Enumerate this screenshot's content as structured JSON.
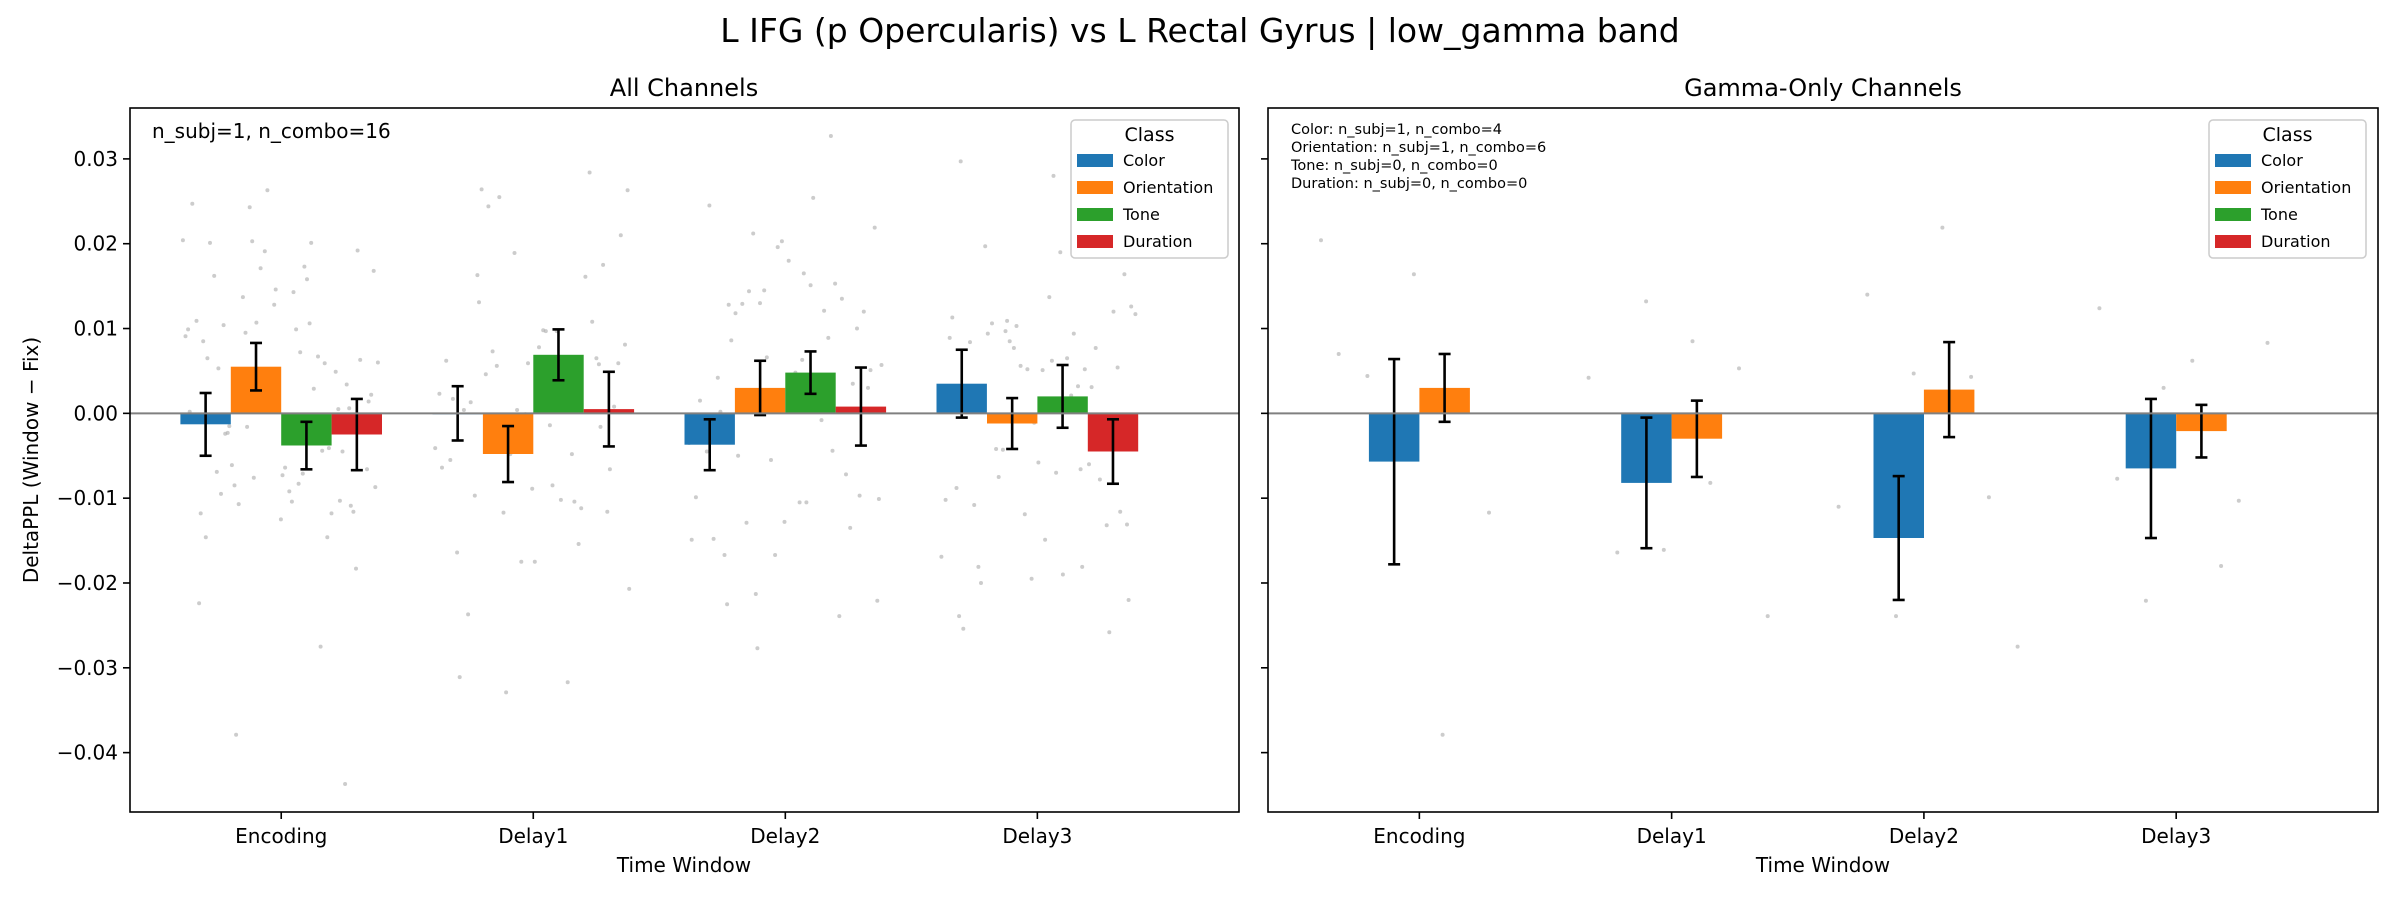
{
  "suptitle": "L IFG (p Opercularis) vs L Rectal Gyrus  |  low_gamma band",
  "legend_title": "Class",
  "classes": [
    "Color",
    "Orientation",
    "Tone",
    "Duration"
  ],
  "colors": {
    "Color": "#1f77b4",
    "Orientation": "#ff7f0e",
    "Tone": "#2ca02c",
    "Duration": "#d62728"
  },
  "chart_data": [
    {
      "type": "bar",
      "title": "All Channels",
      "xlabel": "Time Window",
      "ylabel": "DeltaPPL (Window − Fix)",
      "categories": [
        "Encoding",
        "Delay1",
        "Delay2",
        "Delay3"
      ],
      "ylim": [
        -0.047,
        0.036
      ],
      "yticks": [
        0.03,
        0.02,
        0.01,
        0.0,
        -0.01,
        -0.02,
        -0.03,
        -0.04
      ],
      "ytick_labels": [
        "0.03",
        "0.02",
        "0.01",
        "0.00",
        "−0.01",
        "−0.02",
        "−0.03",
        "−0.04"
      ],
      "annotation": [
        "n_subj=1, n_combo=16"
      ],
      "legend_position": "top-right",
      "series": [
        {
          "name": "Color",
          "values": [
            -0.0013,
            0.0,
            -0.0037,
            0.0035
          ],
          "err": [
            0.0037,
            0.0032,
            0.003,
            0.004
          ]
        },
        {
          "name": "Orientation",
          "values": [
            0.0055,
            -0.0048,
            0.003,
            -0.0012
          ],
          "err": [
            0.0028,
            0.0033,
            0.0032,
            0.003
          ]
        },
        {
          "name": "Tone",
          "values": [
            -0.0038,
            0.0069,
            0.0048,
            0.002
          ],
          "err": [
            0.0028,
            0.003,
            0.0025,
            0.0037
          ]
        },
        {
          "name": "Duration",
          "values": [
            -0.0025,
            0.0005,
            0.0008,
            -0.0045
          ],
          "err": [
            0.0042,
            0.0044,
            0.0046,
            0.0038
          ]
        }
      ],
      "scatter": [
        [
          0.0204,
          0.0173,
          -0.0015,
          -0.0109,
          0.0146,
          -0.0118,
          -0.0044,
          -0.0016,
          0.0014,
          0.0143,
          0.0053,
          -0.0103,
          0.0191,
          0.0002,
          0.0201,
          -0.0379,
          0.0192,
          -0.0073,
          0.0065,
          -0.0041,
          -0.0076,
          -0.0087,
          0.0072,
          -0.0024,
          0.0034,
          0.0028,
          0.0109,
          0.0067,
          0.0137,
          -0.0015,
          -0.0092,
          0.0162,
          0.0049,
          0.0171,
          0.0091,
          0.0158,
          -0.0061,
          -0.0116,
          0.0037,
          0.0085,
          0.0059,
          0.0243,
          0.0022,
          0.0099,
          -0.0095,
          -0.0045,
          0.0263,
          0.0247,
          0.0029,
          -0.0107,
          0.0063,
          -0.0064,
          0.0201,
          -0.0118,
          0.0107,
          0.006,
          -0.0071,
          -0.0023,
          0.0006,
          0.0128,
          -0.0224,
          -0.0275,
          0.0095,
          -0.0066,
          -0.0104,
          -0.0069,
          0.0005,
          0.0031,
          0.0099,
          0.0106,
          -0.0085,
          -0.0183,
          -0.0125,
          -0.0146,
          -0.0146,
          0.0203,
          0.0168,
          -0.0083,
          0.0104,
          -0.0437
        ],
        [
          -0.0032,
          -0.0207,
          0.0003,
          0.0131,
          -0.0016,
          -0.0001,
          -0.0055,
          -0.0048,
          0.0056,
          0.0059,
          0.0098,
          -0.0237,
          0.0284,
          0.0189,
          0.0023,
          -0.0102,
          0.0046,
          -0.0116,
          -0.0089,
          -0.0164,
          -0.0154,
          -0.0117,
          0.0081,
          -0.0014,
          -0.0097,
          0.0065,
          -0.0175,
          0.0062,
          -0.0317,
          0.0073,
          0.0008,
          0.0078,
          0.0004,
          0.0161,
          -0.0048,
          -0.0041,
          0.0097,
          0.0264,
          0.0175,
          0.0059,
          0.0017,
          -0.0104,
          0.0255,
          0.021,
          0.0097,
          0.0013,
          0.0108,
          0.0004,
          -0.0064,
          0.0014,
          0.0244,
          -0.0066,
          -0.0175,
          -0.0311,
          -0.0112,
          -0.0329,
          0.0263,
          -0.0085,
          0.0163,
          0.0058
        ],
        [
          -0.0044,
          -0.0277,
          -0.0101,
          0.0165,
          0.0128,
          -0.0135,
          -0.0167,
          0.0015,
          -0.0008,
          -0.0129,
          0.003,
          0.004,
          0.0042,
          -0.0239,
          0.0145,
          -0.0035,
          0.0151,
          0.0118,
          0.01,
          0.0203,
          -0.0045,
          0.0089,
          0.0212,
          0.0219,
          -0.0105,
          -0.0167,
          -0.0072,
          -0.0055,
          -0.0099,
          0.0012,
          0.0129,
          0.012,
          0.018,
          -0.0148,
          0.0153,
          0.013,
          0.0057,
          -0.0105,
          0.0086,
          0.0035,
          0.0196,
          -0.0031,
          0.0121,
          0.0144,
          0.0051,
          0.0048,
          0.0002,
          0.0135,
          0.0066,
          -0.0149,
          0.0254,
          -0.005,
          -0.0097,
          -0.0128,
          0.0245,
          0.0327,
          -0.0213,
          -0.0221,
          0.0063,
          -0.0225
        ],
        [
          0.0297,
          -0.0181,
          0.0109,
          -0.022,
          0.028,
          -0.0181,
          -0.0078,
          -0.0119,
          0.0089,
          0.0021,
          -0.0042,
          0.0054,
          0.0051,
          0.0006,
          -0.006,
          0.0077,
          0.0117,
          0.019,
          0.0197,
          -0.0132,
          -0.0195,
          -0.0088,
          0.0032,
          -0.0043,
          0.0164,
          0.0137,
          -0.0108,
          0.0077,
          0.0056,
          -0.0102,
          0.0065,
          0.0106,
          0.012,
          -0.0058,
          -0.0254,
          0.0052,
          0.0085,
          0.0126,
          -0.007,
          -0.02,
          -0.0026,
          0.0052,
          0.0113,
          0.0094,
          -0.0075,
          -0.0116,
          -0.0149,
          0.0084,
          0.0031,
          0.0103,
          -0.0169,
          -0.019,
          0.0094,
          -0.0258,
          -0.0011,
          -0.0239,
          -0.0066,
          0.0097,
          -0.0131,
          0.0062
        ]
      ]
    },
    {
      "type": "bar",
      "title": "Gamma-Only Channels",
      "xlabel": "Time Window",
      "ylabel": "",
      "categories": [
        "Encoding",
        "Delay1",
        "Delay2",
        "Delay3"
      ],
      "ylim": [
        -0.047,
        0.036
      ],
      "annotation": [
        "Color: n_subj=1, n_combo=4",
        "Orientation: n_subj=1, n_combo=6",
        "Tone: n_subj=0, n_combo=0",
        "Duration: n_subj=0, n_combo=0"
      ],
      "legend_position": "top-right",
      "series": [
        {
          "name": "Color",
          "values": [
            -0.0057,
            -0.0082,
            -0.0147,
            -0.0065
          ],
          "err": [
            0.0121,
            0.0077,
            0.0073,
            0.0082
          ]
        },
        {
          "name": "Orientation",
          "values": [
            0.003,
            -0.003,
            0.0028,
            -0.0021
          ],
          "err": [
            0.004,
            0.0045,
            0.0056,
            0.0031
          ]
        }
      ],
      "scatter": [
        [
          0.0204,
          -0.0379,
          0.0044,
          -0.0117,
          0.0164,
          0.007
        ],
        [
          0.0132,
          -0.0239,
          0.0085,
          -0.0164,
          0.0053,
          -0.0161,
          0.0042,
          -0.0082
        ],
        [
          0.0043,
          -0.0239,
          -0.0275,
          0.0219,
          0.014,
          -0.0099,
          0.0047,
          -0.011
        ],
        [
          0.0124,
          -0.018,
          -0.0221,
          0.0083,
          0.0062,
          -0.0077,
          -0.0103,
          0.003
        ]
      ]
    }
  ]
}
